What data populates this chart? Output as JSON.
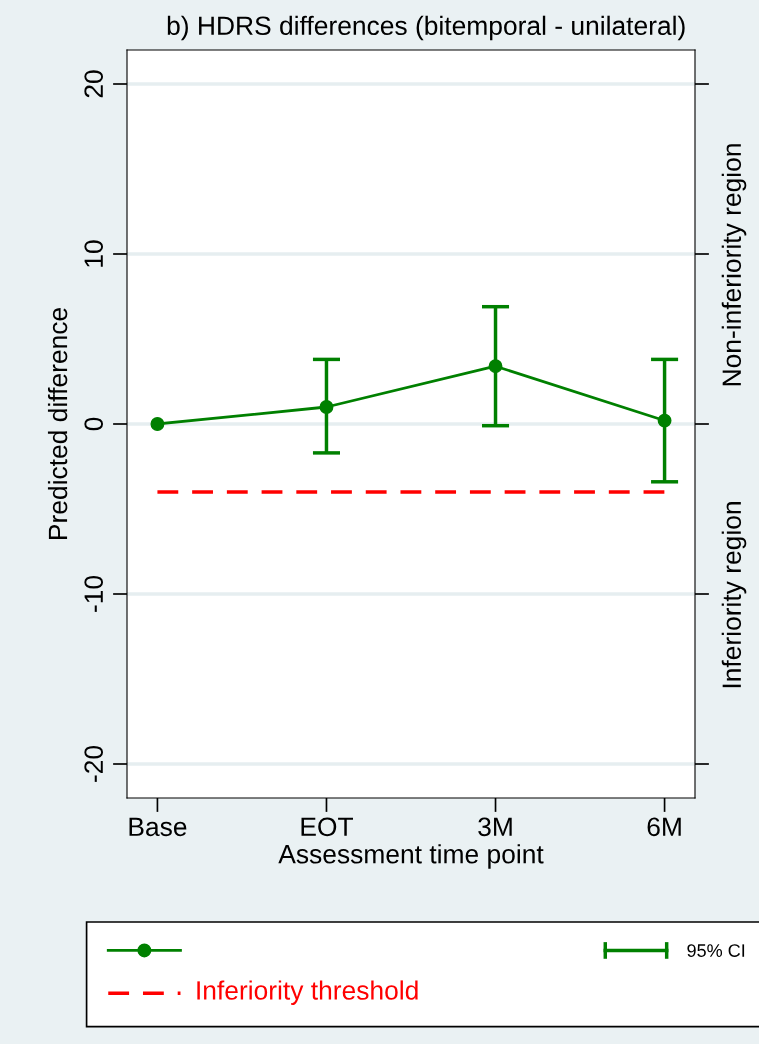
{
  "chart_data": {
    "type": "line",
    "title": "b) HDRS differences (bitemporal - unilateral)",
    "xlabel": "Assessment time point",
    "ylabel": "Predicted difference",
    "categories": [
      "Base",
      "EOT",
      "3M",
      "6M"
    ],
    "series": [
      {
        "color": "#008000",
        "values": [
          0,
          1.0,
          3.4,
          0.2
        ],
        "errors": [
          null,
          [
            -1.7,
            3.8
          ],
          [
            -0.1,
            6.9
          ],
          [
            -3.4,
            3.8
          ]
        ]
      }
    ],
    "marker": "circle",
    "ylim": [
      -22,
      22
    ],
    "yticks": [
      -20,
      -10,
      0,
      10,
      20
    ],
    "ref_lines": [
      {
        "axis": "y",
        "value": -4,
        "label": "Inferiority threshold",
        "color": "#ff0000",
        "line_style": "dashed"
      }
    ],
    "annotations": [
      "Non-inferiority region",
      "Inferiority region",
      "95% CI"
    ],
    "grid": "y",
    "legend": "bottom"
  }
}
